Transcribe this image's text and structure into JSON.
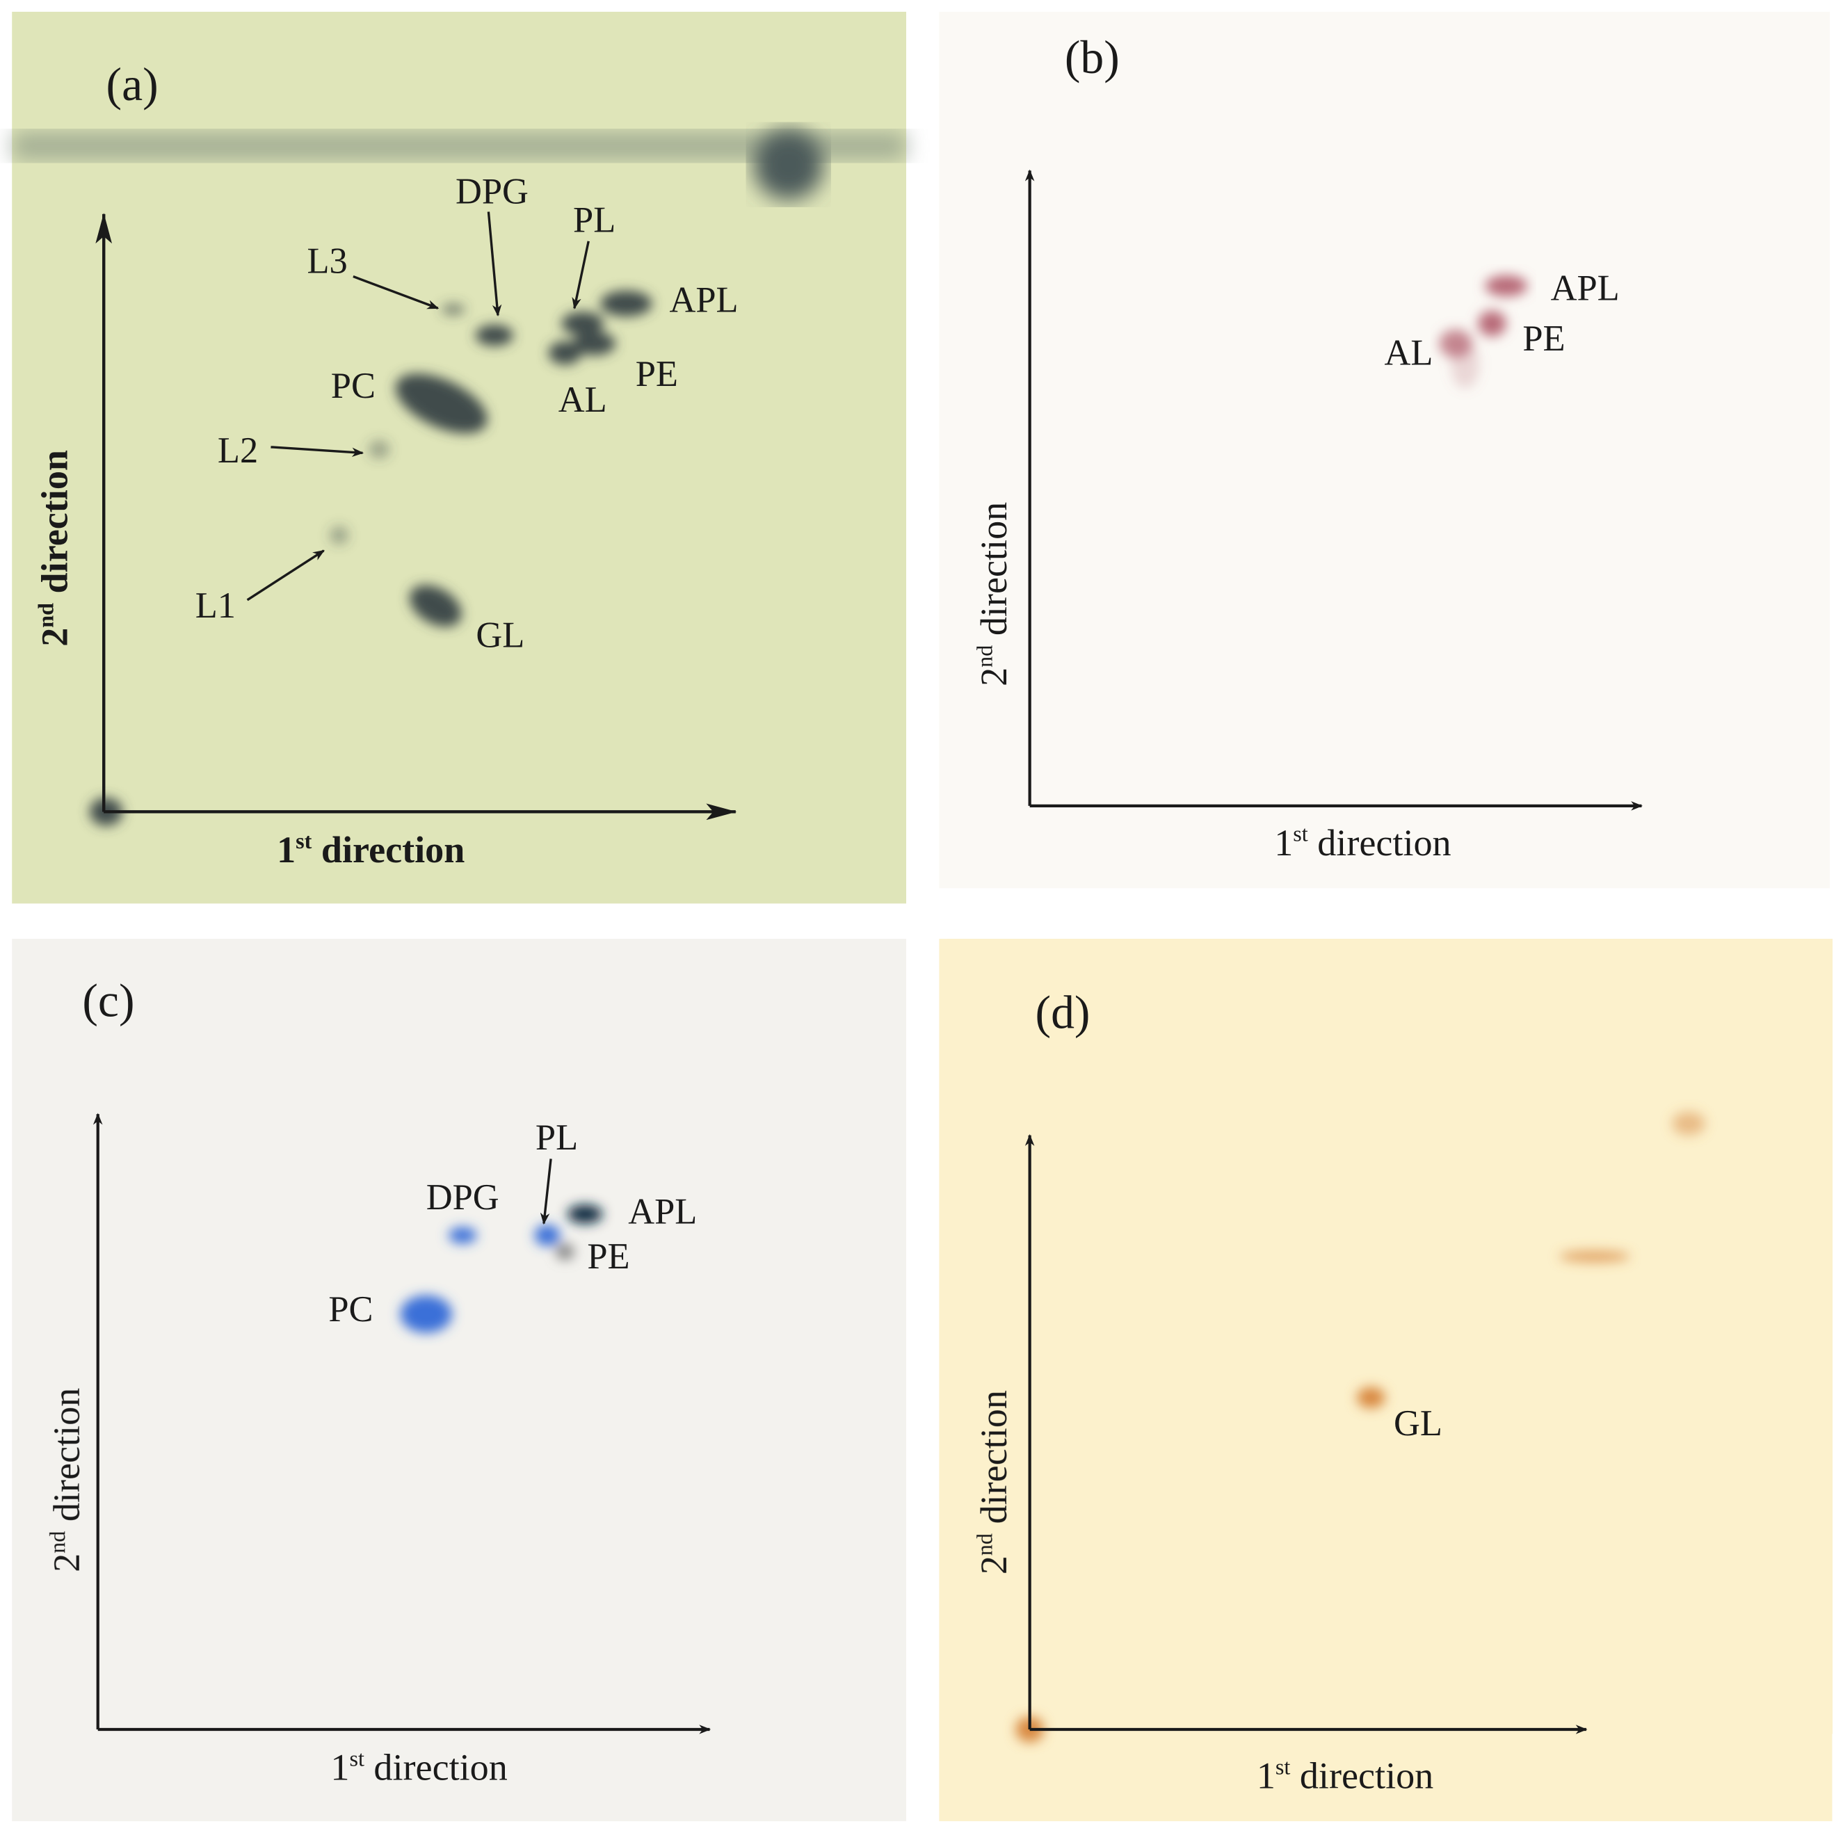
{
  "panels": [
    {
      "label": "(a)",
      "x_axis": {
        "ordinal": "1",
        "suffix": "st",
        "text": "direction"
      },
      "y_axis": {
        "ordinal": "2",
        "suffix": "nd",
        "text": "direction"
      },
      "spots": [
        "DPG",
        "PL",
        "L3",
        "APL",
        "PC",
        "PE",
        "AL",
        "L2",
        "L1",
        "GL"
      ]
    },
    {
      "label": "(b)",
      "x_axis": {
        "ordinal": "1",
        "suffix": "st",
        "text": "direction"
      },
      "y_axis": {
        "ordinal": "2",
        "suffix": "nd",
        "text": "direction"
      },
      "spots": [
        "APL",
        "PE",
        "AL"
      ]
    },
    {
      "label": "(c)",
      "x_axis": {
        "ordinal": "1",
        "suffix": "st",
        "text": "direction"
      },
      "y_axis": {
        "ordinal": "2",
        "suffix": "nd",
        "text": "direction"
      },
      "spots": [
        "PL",
        "DPG",
        "APL",
        "PE",
        "PC"
      ]
    },
    {
      "label": "(d)",
      "x_axis": {
        "ordinal": "1",
        "suffix": "st",
        "text": "direction"
      },
      "y_axis": {
        "ordinal": "2",
        "suffix": "nd",
        "text": "direction"
      },
      "spots": [
        "GL"
      ]
    }
  ]
}
